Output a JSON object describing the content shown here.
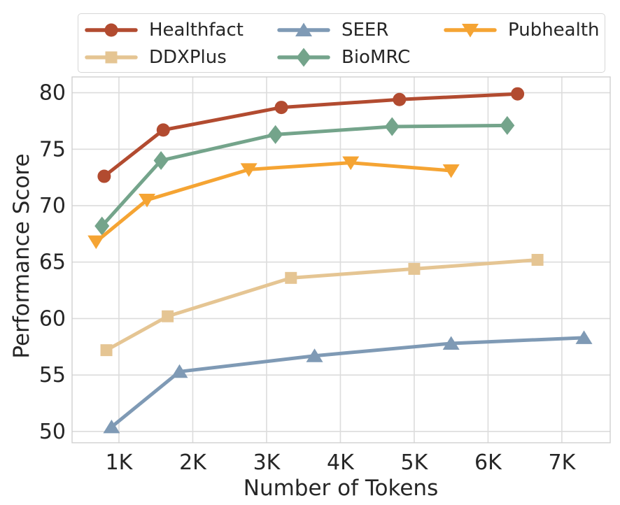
{
  "figure": {
    "background": "#ffffff",
    "text_color": "#262626",
    "grid_color": "#dcdcdc",
    "spine_color": "#cfcfcf"
  },
  "chart_data": {
    "type": "line",
    "title": "",
    "xlabel": "Number of Tokens",
    "ylabel": "Performance Score",
    "x_unit": "K",
    "xlim": [
      0.365,
      7.655
    ],
    "ylim": [
      49.0,
      81.4
    ],
    "x_ticks": [
      1,
      2,
      3,
      4,
      5,
      6,
      7
    ],
    "x_tick_labels": [
      "1K",
      "2K",
      "3K",
      "4K",
      "5K",
      "6K",
      "7K"
    ],
    "y_ticks": [
      50,
      55,
      60,
      65,
      70,
      75,
      80
    ],
    "y_tick_labels": [
      "50",
      "55",
      "60",
      "65",
      "70",
      "75",
      "80"
    ],
    "grid": true,
    "legend_position": "upper center, 3 columns",
    "series": [
      {
        "name": "Healthfact",
        "color": "#b24b30",
        "marker": "circle",
        "x": [
          0.8,
          1.6,
          3.2,
          4.8,
          6.4
        ],
        "y": [
          72.6,
          76.7,
          78.7,
          79.4,
          79.9
        ]
      },
      {
        "name": "DDXPlus",
        "color": "#e5c593",
        "marker": "square",
        "x": [
          0.83,
          1.66,
          3.33,
          5.0,
          6.67
        ],
        "y": [
          57.2,
          60.2,
          63.6,
          64.4,
          65.2
        ]
      },
      {
        "name": "SEER",
        "color": "#7f9ab5",
        "marker": "triangle-up",
        "x": [
          0.9,
          1.82,
          3.65,
          5.5,
          7.3
        ],
        "y": [
          50.4,
          55.3,
          56.7,
          57.8,
          58.3
        ]
      },
      {
        "name": "BioMRC",
        "color": "#74a48b",
        "marker": "diamond",
        "x": [
          0.77,
          1.57,
          3.12,
          4.7,
          6.26
        ],
        "y": [
          68.2,
          74.0,
          76.3,
          77.0,
          77.1
        ]
      },
      {
        "name": "Pubhealth",
        "color": "#f5a433",
        "marker": "triangle-down",
        "x": [
          0.69,
          1.38,
          2.76,
          4.14,
          5.5
        ],
        "y": [
          66.8,
          70.5,
          73.2,
          73.8,
          73.1
        ]
      }
    ]
  }
}
